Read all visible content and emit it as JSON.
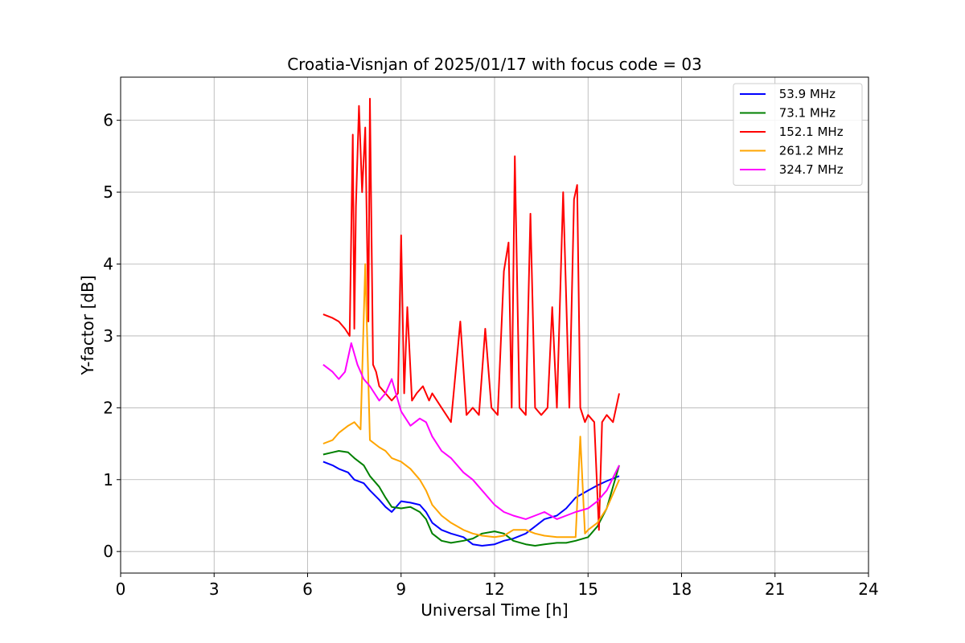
{
  "chart_data": {
    "type": "line",
    "title": "Croatia-Visnjan of 2025/01/17 with focus code = 03",
    "xlabel": "Universal Time [h]",
    "ylabel": "Y-factor [dB]",
    "xlim": [
      0,
      24
    ],
    "ylim": [
      -0.3,
      6.6
    ],
    "xticks": [
      0,
      3,
      6,
      9,
      12,
      15,
      18,
      21,
      24
    ],
    "xtick_labels": [
      "0",
      "3",
      "6",
      "9",
      "12",
      "15",
      "18",
      "21",
      "24"
    ],
    "yticks": [
      0,
      1,
      2,
      3,
      4,
      5,
      6
    ],
    "ytick_labels": [
      "0",
      "1",
      "2",
      "3",
      "4",
      "5",
      "6"
    ],
    "grid": true,
    "legend_position": "top-right",
    "series": [
      {
        "name": " 53.9 MHz",
        "color": "#0000ff",
        "x": [
          6.5,
          6.8,
          7.0,
          7.3,
          7.5,
          7.8,
          8.0,
          8.3,
          8.5,
          8.7,
          9.0,
          9.3,
          9.6,
          9.8,
          10.0,
          10.3,
          10.6,
          11.0,
          11.3,
          11.6,
          12.0,
          12.3,
          12.6,
          13.0,
          13.3,
          13.6,
          14.0,
          14.3,
          14.6,
          15.0,
          15.3,
          15.6,
          16.0
        ],
        "y": [
          1.25,
          1.2,
          1.15,
          1.1,
          1.0,
          0.95,
          0.85,
          0.72,
          0.62,
          0.55,
          0.7,
          0.68,
          0.65,
          0.55,
          0.4,
          0.3,
          0.25,
          0.2,
          0.1,
          0.08,
          0.1,
          0.15,
          0.18,
          0.25,
          0.35,
          0.45,
          0.5,
          0.6,
          0.75,
          0.85,
          0.92,
          0.98,
          1.05
        ]
      },
      {
        "name": " 73.1 MHz",
        "color": "#008000",
        "x": [
          6.5,
          6.8,
          7.0,
          7.3,
          7.5,
          7.8,
          8.0,
          8.3,
          8.5,
          8.7,
          9.0,
          9.3,
          9.6,
          9.8,
          10.0,
          10.3,
          10.6,
          11.0,
          11.3,
          11.6,
          12.0,
          12.3,
          12.6,
          13.0,
          13.3,
          13.6,
          14.0,
          14.3,
          14.6,
          15.0,
          15.3,
          15.6,
          16.0
        ],
        "y": [
          1.35,
          1.38,
          1.4,
          1.38,
          1.3,
          1.2,
          1.05,
          0.9,
          0.75,
          0.62,
          0.6,
          0.62,
          0.55,
          0.45,
          0.25,
          0.15,
          0.12,
          0.15,
          0.18,
          0.25,
          0.28,
          0.25,
          0.15,
          0.1,
          0.08,
          0.1,
          0.12,
          0.12,
          0.15,
          0.2,
          0.35,
          0.6,
          1.2
        ]
      },
      {
        "name": " 152.1 MHz",
        "color": "#ff0000",
        "x": [
          6.5,
          6.8,
          7.0,
          7.2,
          7.35,
          7.45,
          7.5,
          7.55,
          7.65,
          7.75,
          7.85,
          7.95,
          8.0,
          8.1,
          8.2,
          8.3,
          8.5,
          8.7,
          8.9,
          9.0,
          9.1,
          9.2,
          9.35,
          9.5,
          9.7,
          9.9,
          10.0,
          10.3,
          10.6,
          10.9,
          11.1,
          11.3,
          11.5,
          11.7,
          11.9,
          12.1,
          12.3,
          12.45,
          12.55,
          12.65,
          12.8,
          13.0,
          13.15,
          13.3,
          13.5,
          13.7,
          13.85,
          14.0,
          14.2,
          14.4,
          14.55,
          14.65,
          14.75,
          14.9,
          15.0,
          15.2,
          15.35,
          15.45,
          15.6,
          15.8,
          16.0
        ],
        "y": [
          3.3,
          3.25,
          3.2,
          3.1,
          3.0,
          5.8,
          3.1,
          4.8,
          6.2,
          5.0,
          5.9,
          3.2,
          6.3,
          2.6,
          2.5,
          2.3,
          2.2,
          2.1,
          2.2,
          4.4,
          2.2,
          3.4,
          2.1,
          2.2,
          2.3,
          2.1,
          2.2,
          2.0,
          1.8,
          3.2,
          1.9,
          2.0,
          1.9,
          3.1,
          2.0,
          1.9,
          3.9,
          4.3,
          2.0,
          5.5,
          2.0,
          1.9,
          4.7,
          2.0,
          1.9,
          2.0,
          3.4,
          2.0,
          5.0,
          2.0,
          4.9,
          5.1,
          2.0,
          1.8,
          1.9,
          1.8,
          0.3,
          1.8,
          1.9,
          1.8,
          2.2
        ]
      },
      {
        "name": " 261.2 MHz",
        "color": "#ffa500",
        "x": [
          6.5,
          6.8,
          7.0,
          7.3,
          7.5,
          7.7,
          7.85,
          8.0,
          8.3,
          8.5,
          8.7,
          9.0,
          9.3,
          9.6,
          9.8,
          10.0,
          10.3,
          10.6,
          11.0,
          11.3,
          11.6,
          12.0,
          12.3,
          12.6,
          13.0,
          13.3,
          13.6,
          14.0,
          14.3,
          14.6,
          14.75,
          14.9,
          15.0,
          15.3,
          15.6,
          16.0
        ],
        "y": [
          1.5,
          1.55,
          1.65,
          1.75,
          1.8,
          1.7,
          4.0,
          1.55,
          1.45,
          1.4,
          1.3,
          1.25,
          1.15,
          1.0,
          0.85,
          0.65,
          0.5,
          0.4,
          0.3,
          0.25,
          0.22,
          0.2,
          0.22,
          0.3,
          0.3,
          0.25,
          0.22,
          0.2,
          0.2,
          0.2,
          1.6,
          0.25,
          0.3,
          0.4,
          0.6,
          1.0
        ]
      },
      {
        "name": " 324.7 MHz",
        "color": "#ff00ff",
        "x": [
          6.5,
          6.8,
          7.0,
          7.2,
          7.4,
          7.6,
          7.8,
          8.0,
          8.3,
          8.5,
          8.7,
          9.0,
          9.3,
          9.6,
          9.8,
          10.0,
          10.3,
          10.6,
          11.0,
          11.3,
          11.6,
          12.0,
          12.3,
          12.6,
          13.0,
          13.3,
          13.6,
          14.0,
          14.3,
          14.6,
          15.0,
          15.3,
          15.6,
          16.0
        ],
        "y": [
          2.6,
          2.5,
          2.4,
          2.5,
          2.9,
          2.6,
          2.4,
          2.3,
          2.1,
          2.2,
          2.4,
          1.95,
          1.75,
          1.85,
          1.8,
          1.6,
          1.4,
          1.3,
          1.1,
          1.0,
          0.85,
          0.65,
          0.55,
          0.5,
          0.45,
          0.5,
          0.55,
          0.45,
          0.5,
          0.55,
          0.6,
          0.7,
          0.85,
          1.2
        ]
      }
    ]
  }
}
